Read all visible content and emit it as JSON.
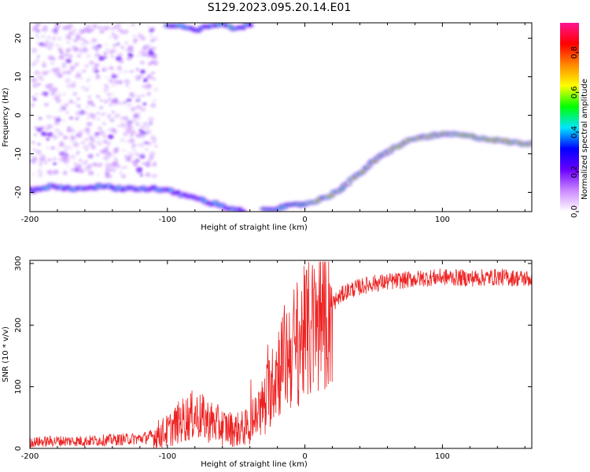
{
  "title": "S129.2023.095.20.14.E01",
  "chart_data": [
    {
      "type": "heatmap",
      "xlabel": "Height of straight line (km)",
      "ylabel": "Frequency (Hz)",
      "xlim": [
        -200,
        165
      ],
      "ylim": [
        -25,
        24
      ],
      "xticks": [
        -200,
        -100,
        0,
        100
      ],
      "yticks": [
        -20,
        -10,
        0,
        10,
        20
      ],
      "colorbar": {
        "label": "Normalized spectral amplitude",
        "range": [
          0,
          0.95
        ],
        "ticks": [
          "0.0",
          "0.2",
          "0.4",
          "0.6",
          "0.8"
        ],
        "tick_values": [
          0,
          0.2,
          0.4,
          0.6,
          0.8
        ],
        "colors": [
          "#ffffff",
          "#cc88ff",
          "#6a00ff",
          "#0000ff",
          "#00e5ff",
          "#00ff00",
          "#ffff00",
          "#ff8800",
          "#ff0000",
          "#ff1493"
        ]
      },
      "ridge_left": {
        "x": [
          -200,
          -185,
          -170,
          -150,
          -130,
          -110,
          -95,
          -80,
          -65,
          -55,
          -45
        ],
        "y": [
          -19.5,
          -18.5,
          -19.0,
          -18.5,
          -19.0,
          -19.0,
          -20.0,
          -21.5,
          -23.0,
          -24.0,
          -25.0
        ]
      },
      "ridge_top": {
        "x": [
          -100,
          -90,
          -80,
          -70,
          -60,
          -50,
          -40
        ],
        "y": [
          23.5,
          23.0,
          22.0,
          23.0,
          23.5,
          22.5,
          23.5
        ]
      },
      "ridge_main": {
        "x": [
          -30,
          -20,
          -10,
          0,
          10,
          20,
          30,
          40,
          50,
          60,
          70,
          80,
          90,
          100,
          110,
          120,
          130,
          140,
          150,
          165
        ],
        "y": [
          -24.5,
          -24.0,
          -23.5,
          -23.0,
          -22.0,
          -20.5,
          -18.0,
          -15.0,
          -12.0,
          -9.5,
          -7.5,
          -6.0,
          -5.5,
          -5.0,
          -5.0,
          -5.5,
          -6.0,
          -6.5,
          -7.0,
          -7.5
        ]
      }
    },
    {
      "type": "line",
      "xlabel": "Height of straight line (km)",
      "ylabel": "SNR (10 * v/v)",
      "xlim": [
        -200,
        165
      ],
      "ylim": [
        0,
        305
      ],
      "xticks": [
        -200,
        -100,
        0,
        100
      ],
      "yticks": [
        0,
        100,
        200,
        300
      ],
      "series": [
        {
          "color": "#ee2222",
          "x": [
            -200,
            -180,
            -160,
            -140,
            -120,
            -110,
            -100,
            -90,
            -80,
            -70,
            -60,
            -50,
            -40,
            -30,
            -20,
            -10,
            0,
            10,
            20,
            30,
            40,
            50,
            60,
            80,
            100,
            120,
            140,
            165
          ],
          "y": [
            10,
            12,
            12,
            14,
            16,
            20,
            28,
            45,
            55,
            45,
            35,
            30,
            35,
            70,
            130,
            160,
            185,
            200,
            235,
            255,
            262,
            268,
            270,
            275,
            278,
            276,
            278,
            275
          ]
        }
      ]
    }
  ]
}
